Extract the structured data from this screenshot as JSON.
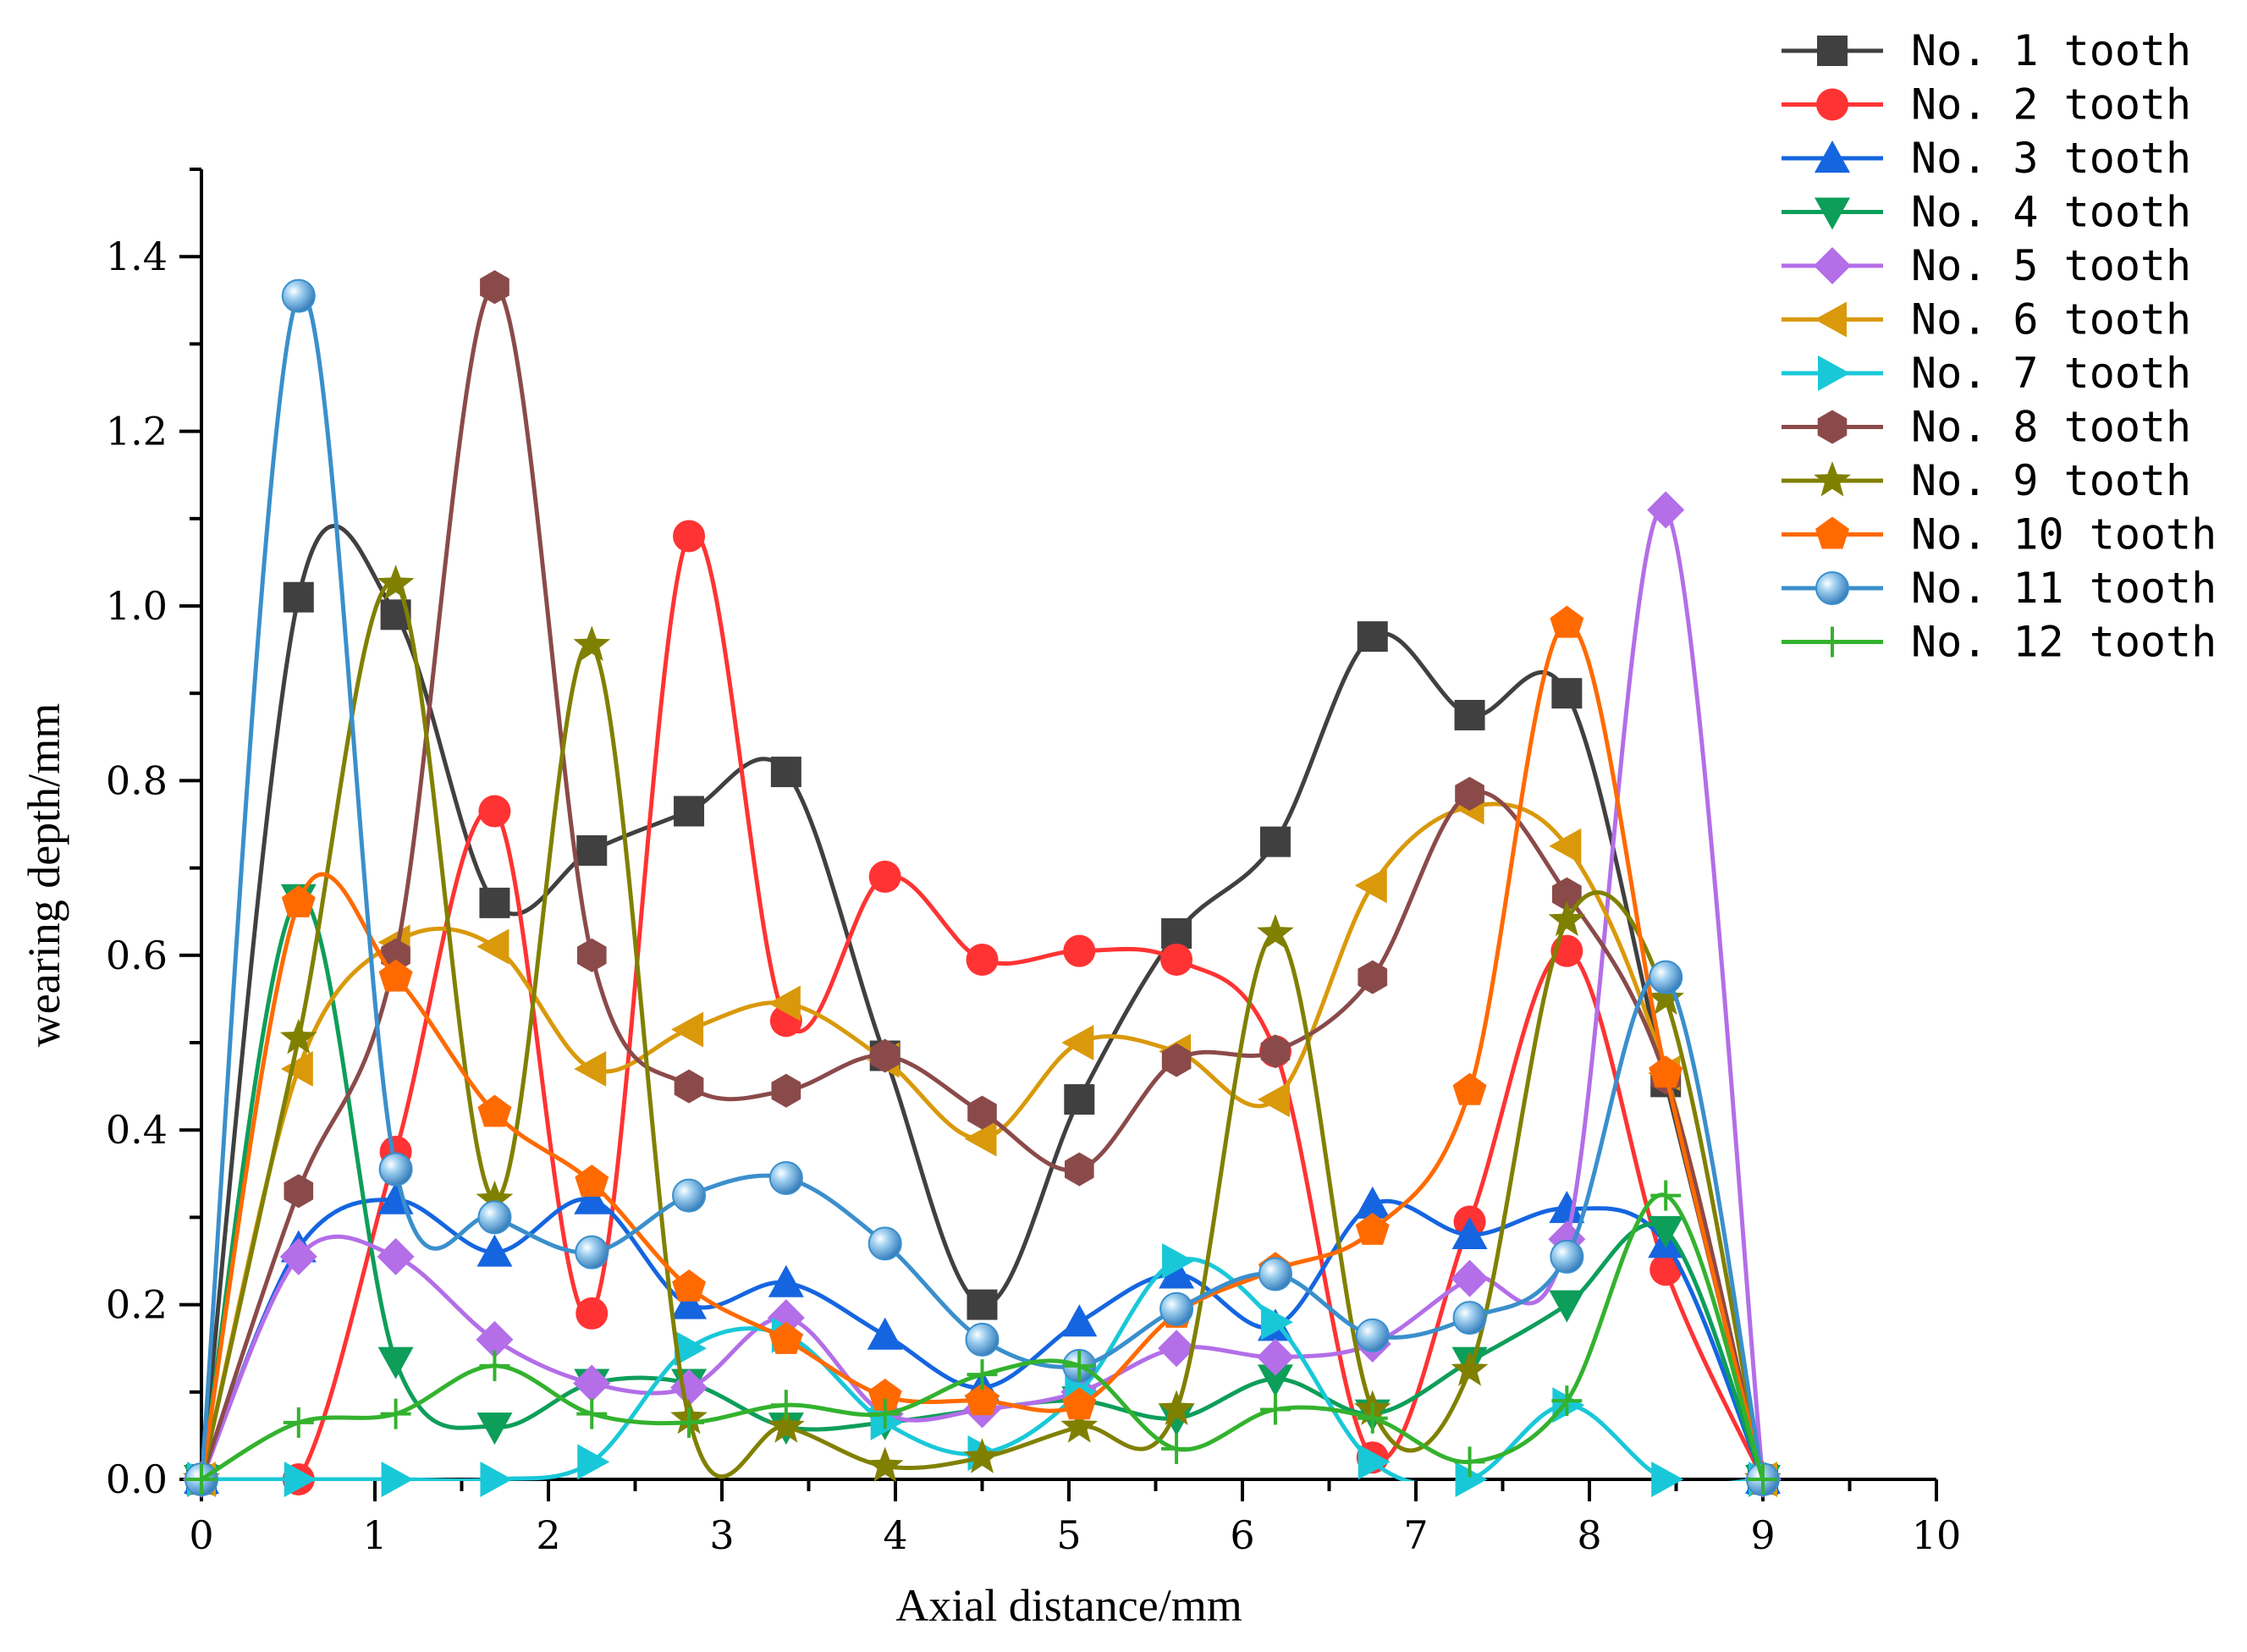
{
  "chart_data": {
    "type": "line",
    "title": "",
    "xlabel": "Axial distance/mm",
    "ylabel": "wearing depth/mm",
    "xlim": [
      0,
      10
    ],
    "ylim": [
      0,
      1.5
    ],
    "xticks": [
      "0",
      "1",
      "2",
      "3",
      "4",
      "5",
      "6",
      "7",
      "8",
      "9",
      "10"
    ],
    "yticks": [
      "0.0",
      "0.2",
      "0.4",
      "0.6",
      "0.8",
      "1.0",
      "1.2",
      "1.4"
    ],
    "legend_position": "top-right",
    "x": [
      0,
      0.56,
      1.12,
      1.69,
      2.25,
      2.81,
      3.37,
      3.94,
      4.5,
      5.06,
      5.62,
      6.19,
      6.75,
      7.31,
      7.87,
      8.44,
      9.0
    ],
    "series": [
      {
        "name": "No.  1 tooth",
        "color": "#404040",
        "marker": "square",
        "values": [
          0,
          1.01,
          0.99,
          0.66,
          0.72,
          0.765,
          0.81,
          0.485,
          0.2,
          0.435,
          0.625,
          0.73,
          0.965,
          0.875,
          0.9,
          0.455,
          0
        ]
      },
      {
        "name": "No.  2 tooth",
        "color": "#ff3333",
        "marker": "circle",
        "values": [
          0,
          0,
          0.375,
          0.765,
          0.19,
          1.08,
          0.525,
          0.69,
          0.595,
          0.605,
          0.595,
          0.49,
          0.025,
          0.295,
          0.605,
          0.24,
          0
        ]
      },
      {
        "name": "No.  3 tooth",
        "color": "#1565e0",
        "marker": "triangle-up",
        "values": [
          0,
          0.265,
          0.32,
          0.26,
          0.32,
          0.2,
          0.225,
          0.165,
          0.105,
          0.18,
          0.235,
          0.175,
          0.315,
          0.28,
          0.31,
          0.27,
          0
        ]
      },
      {
        "name": "No.  4 tooth",
        "color": "#0d9e5a",
        "marker": "triangle-down",
        "values": [
          0,
          0.665,
          0.135,
          0.06,
          0.11,
          0.11,
          0.06,
          0.065,
          0.08,
          0.09,
          0.07,
          0.115,
          0.075,
          0.135,
          0.2,
          0.285,
          0
        ]
      },
      {
        "name": "No.  5 tooth",
        "color": "#b36ee8",
        "marker": "diamond",
        "values": [
          0,
          0.255,
          0.255,
          0.16,
          0.11,
          0.105,
          0.185,
          0.075,
          0.08,
          0.1,
          0.15,
          0.14,
          0.155,
          0.23,
          0.275,
          1.11,
          0
        ]
      },
      {
        "name": "No.  6 tooth",
        "color": "#d9990a",
        "marker": "triangle-left",
        "values": [
          0,
          0.47,
          0.615,
          0.61,
          0.47,
          0.515,
          0.545,
          0.48,
          0.39,
          0.5,
          0.49,
          0.435,
          0.68,
          0.77,
          0.725,
          0.465,
          0
        ]
      },
      {
        "name": "No.  7 tooth",
        "color": "#19c8d8",
        "marker": "triangle-right",
        "values": [
          0,
          0,
          0,
          0,
          0.02,
          0.15,
          0.165,
          0.065,
          0.03,
          0.1,
          0.25,
          0.18,
          0.02,
          0,
          0.085,
          0,
          0
        ]
      },
      {
        "name": "No.  8 tooth",
        "color": "#8b4a4a",
        "marker": "hexagon",
        "values": [
          0,
          0.33,
          0.6,
          1.365,
          0.6,
          0.45,
          0.445,
          0.485,
          0.42,
          0.355,
          0.48,
          0.49,
          0.575,
          0.785,
          0.67,
          0.46,
          0
        ]
      },
      {
        "name": "No.  9 tooth",
        "color": "#808000",
        "marker": "star",
        "values": [
          0,
          0.505,
          1.025,
          0.32,
          0.955,
          0.07,
          0.06,
          0.015,
          0.025,
          0.06,
          0.08,
          0.625,
          0.08,
          0.125,
          0.64,
          0.55,
          0
        ]
      },
      {
        "name": "No. 10 tooth",
        "color": "#ff6a00",
        "marker": "pentagon",
        "values": [
          0,
          0.66,
          0.575,
          0.42,
          0.34,
          0.22,
          0.16,
          0.095,
          0.09,
          0.085,
          0.19,
          0.24,
          0.285,
          0.445,
          0.98,
          0.465,
          0
        ]
      },
      {
        "name": "No. 11 tooth",
        "color": "#3a8fcc",
        "marker": "sphere",
        "values": [
          0,
          1.355,
          0.355,
          0.3,
          0.26,
          0.325,
          0.345,
          0.27,
          0.16,
          0.13,
          0.195,
          0.235,
          0.165,
          0.185,
          0.255,
          0.575,
          0
        ]
      },
      {
        "name": "No. 12 tooth",
        "color": "#33b22e",
        "marker": "plus",
        "values": [
          0,
          0.065,
          0.075,
          0.13,
          0.075,
          0.065,
          0.085,
          0.075,
          0.12,
          0.13,
          0.035,
          0.08,
          0.07,
          0.02,
          0.09,
          0.325,
          0
        ]
      }
    ]
  }
}
